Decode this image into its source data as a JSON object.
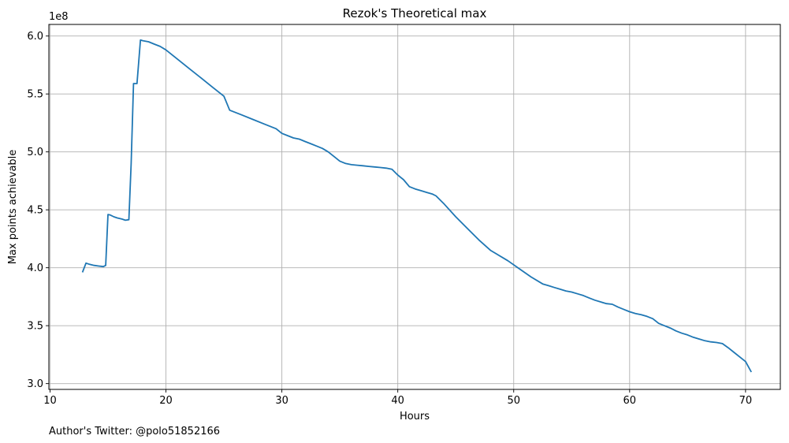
{
  "footer": {
    "text": "Author's Twitter: @polo51852166"
  },
  "chart_data": {
    "type": "line",
    "title": "Rezok's Theoretical max",
    "xlabel": "Hours",
    "ylabel": "Max points achievable",
    "y_offset_text": "1e8",
    "xlim": [
      9.9,
      73.0
    ],
    "ylim": [
      2.95,
      6.1
    ],
    "x_ticks": [
      10,
      20,
      30,
      40,
      50,
      60,
      70
    ],
    "x_tick_labels": [
      "10",
      "20",
      "30",
      "40",
      "50",
      "60",
      "70"
    ],
    "y_ticks": [
      3.0,
      3.5,
      4.0,
      4.5,
      5.0,
      5.5,
      6.0
    ],
    "y_tick_labels": [
      "3.0",
      "3.5",
      "4.0",
      "4.5",
      "5.0",
      "5.5",
      "6.0"
    ],
    "grid": true,
    "line_color": "#1f77b4",
    "series": [
      {
        "x": [
          12.8,
          13.1,
          13.4,
          13.8,
          14.2,
          14.6,
          14.8,
          15.0,
          15.2,
          15.5,
          15.8,
          16.2,
          16.5,
          16.8,
          17.0,
          17.2,
          17.5,
          17.8,
          18.0,
          18.5,
          19.0,
          19.5,
          20.0,
          21.0,
          22.0,
          23.0,
          24.0,
          25.0,
          25.5,
          26.5,
          27.5,
          28.5,
          29.5,
          30.0,
          30.5,
          31.0,
          31.5,
          32.0,
          32.5,
          33.0,
          33.5,
          34.0,
          34.5,
          35.0,
          35.5,
          36.0,
          36.5,
          37.0,
          37.5,
          38.0,
          38.5,
          39.0,
          39.5,
          40.0,
          40.5,
          41.0,
          41.5,
          42.0,
          42.5,
          43.0,
          43.3,
          44.0,
          45.0,
          46.0,
          47.0,
          48.0,
          48.5,
          49.5,
          50.5,
          51.5,
          52.5,
          53.0,
          53.5,
          54.0,
          54.5,
          55.0,
          55.5,
          56.0,
          56.5,
          57.0,
          57.5,
          58.0,
          58.5,
          59.0,
          59.5,
          60.0,
          60.5,
          61.0,
          61.5,
          62.0,
          62.5,
          63.0,
          63.5,
          64.0,
          64.5,
          65.0,
          65.5,
          66.0,
          66.5,
          67.0,
          67.5,
          68.0,
          68.5,
          69.0,
          69.5,
          70.0,
          70.5
        ],
        "y": [
          3.96,
          4.04,
          4.03,
          4.02,
          4.015,
          4.01,
          4.02,
          4.46,
          4.455,
          4.44,
          4.43,
          4.42,
          4.41,
          4.415,
          4.9,
          5.59,
          5.59,
          5.965,
          5.96,
          5.95,
          5.93,
          5.91,
          5.88,
          5.8,
          5.72,
          5.64,
          5.56,
          5.48,
          5.36,
          5.32,
          5.28,
          5.24,
          5.2,
          5.16,
          5.14,
          5.12,
          5.11,
          5.09,
          5.07,
          5.05,
          5.03,
          5.0,
          4.96,
          4.92,
          4.9,
          4.89,
          4.885,
          4.88,
          4.875,
          4.87,
          4.865,
          4.86,
          4.85,
          4.8,
          4.76,
          4.7,
          4.68,
          4.665,
          4.65,
          4.635,
          4.62,
          4.55,
          4.44,
          4.34,
          4.24,
          4.15,
          4.12,
          4.06,
          3.99,
          3.92,
          3.86,
          3.845,
          3.83,
          3.815,
          3.8,
          3.79,
          3.775,
          3.76,
          3.74,
          3.72,
          3.705,
          3.69,
          3.685,
          3.66,
          3.64,
          3.62,
          3.605,
          3.595,
          3.58,
          3.56,
          3.52,
          3.5,
          3.48,
          3.455,
          3.435,
          3.42,
          3.4,
          3.385,
          3.37,
          3.36,
          3.355,
          3.345,
          3.31,
          3.27,
          3.23,
          3.19,
          3.1
        ]
      }
    ]
  }
}
